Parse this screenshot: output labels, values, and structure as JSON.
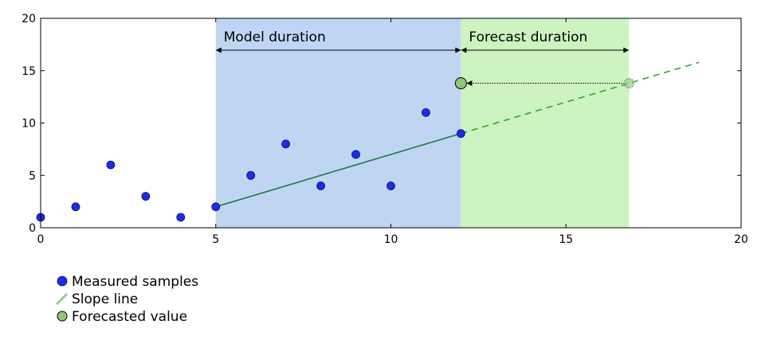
{
  "chart_data": {
    "type": "scatter",
    "xlim": [
      0,
      20
    ],
    "ylim": [
      0,
      20
    ],
    "x_ticks": [
      0,
      5,
      10,
      15,
      20
    ],
    "y_ticks": [
      0,
      5,
      10,
      15,
      20
    ],
    "x_tick_labels": [
      "0",
      "5",
      "10",
      "15",
      "20"
    ],
    "y_tick_labels": [
      "0",
      "5",
      "10",
      "15",
      "20"
    ],
    "grid": false,
    "legend_position": "bottom-left",
    "colors": {
      "samples": "#1a2ee6",
      "slope": "#1a7a3c",
      "forecast_dashed": "#2ea82e",
      "forecast_point": "#8fc67a",
      "model_band": "#bfd5f2",
      "forecast_band": "#cdf3c0"
    },
    "regions": [
      {
        "label": "Model duration",
        "x_start": 5,
        "x_end": 12
      },
      {
        "label": "Forecast duration",
        "x_start": 12,
        "x_end": 16.8
      }
    ],
    "series": [
      {
        "name": "Measured samples",
        "points": [
          [
            0,
            1
          ],
          [
            1,
            2
          ],
          [
            2,
            6
          ],
          [
            3,
            3
          ],
          [
            4,
            1
          ],
          [
            5,
            2
          ],
          [
            6,
            5
          ],
          [
            7,
            8
          ],
          [
            8,
            4
          ],
          [
            9,
            7
          ],
          [
            10,
            4
          ],
          [
            11,
            11
          ],
          [
            12,
            9
          ]
        ]
      },
      {
        "name": "Slope line",
        "solid": [
          [
            5,
            2
          ],
          [
            12,
            9
          ]
        ],
        "dashed": [
          [
            12,
            9
          ],
          [
            18.8,
            15.8
          ]
        ]
      },
      {
        "name": "Forecasted value",
        "point": [
          12,
          13.8
        ],
        "projected_from": [
          16.8,
          13.8
        ]
      }
    ],
    "legend": [
      "Measured samples",
      "Slope line",
      "Forecasted value"
    ]
  }
}
